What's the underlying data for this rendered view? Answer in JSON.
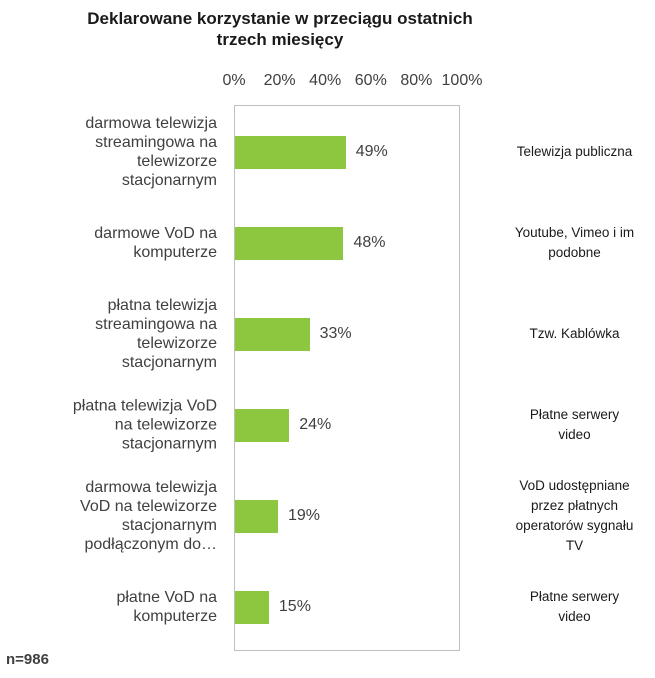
{
  "chart_data": {
    "type": "bar",
    "orientation": "horizontal",
    "title": "Deklarowane korzystanie w przeciągu ostatnich trzech miesięcy",
    "title_lines": [
      "Deklarowane korzystanie w przeciągu ostatnich",
      "trzech miesięcy"
    ],
    "x_ticks": [
      "0%",
      "20%",
      "40%",
      "60%",
      "80%",
      "100%"
    ],
    "xlim": [
      0,
      100
    ],
    "categories": [
      "darmowa telewizja streamingowa na telewizorze stacjonarnym",
      "darmowe VoD na komputerze",
      "płatna telewizja streamingowa na telewizorze stacjonarnym",
      "płatna telewizja VoD na telewizorze stacjonarnym",
      "darmowa telewizja VoD na telewizorze stacjonarnym podłączonym do…",
      "płatne VoD na komputerze"
    ],
    "category_lines": [
      [
        "darmowa telewizja",
        "streamingowa na",
        "telewizorze",
        "stacjonarnym"
      ],
      [
        "darmowe VoD na",
        "komputerze"
      ],
      [
        "płatna telewizja",
        "streamingowa na",
        "telewizorze",
        "stacjonarnym"
      ],
      [
        "płatna telewizja VoD",
        "na telewizorze",
        "stacjonarnym"
      ],
      [
        "darmowa telewizja",
        "VoD na telewizorze",
        "stacjonarnym",
        "podłączonym do…"
      ],
      [
        "płatne VoD na",
        "komputerze"
      ]
    ],
    "values": [
      49,
      48,
      33,
      24,
      19,
      15
    ],
    "data_labels": [
      "49%",
      "48%",
      "33%",
      "24%",
      "19%",
      "15%"
    ],
    "side_annotations": [
      [
        "Telewizja publiczna"
      ],
      [
        "Youtube, Vimeo i im",
        "podobne"
      ],
      [
        "Tzw. Kablówka"
      ],
      [
        "Płatne serwery",
        "video"
      ],
      [
        "VoD udostępniane",
        "przez płatnych",
        "operatorów sygnału",
        "TV"
      ],
      [
        "Płatne serwery",
        "video"
      ]
    ],
    "bar_color": "#8dc63f",
    "grid": false,
    "legend": "none"
  },
  "footnote": "n=986"
}
